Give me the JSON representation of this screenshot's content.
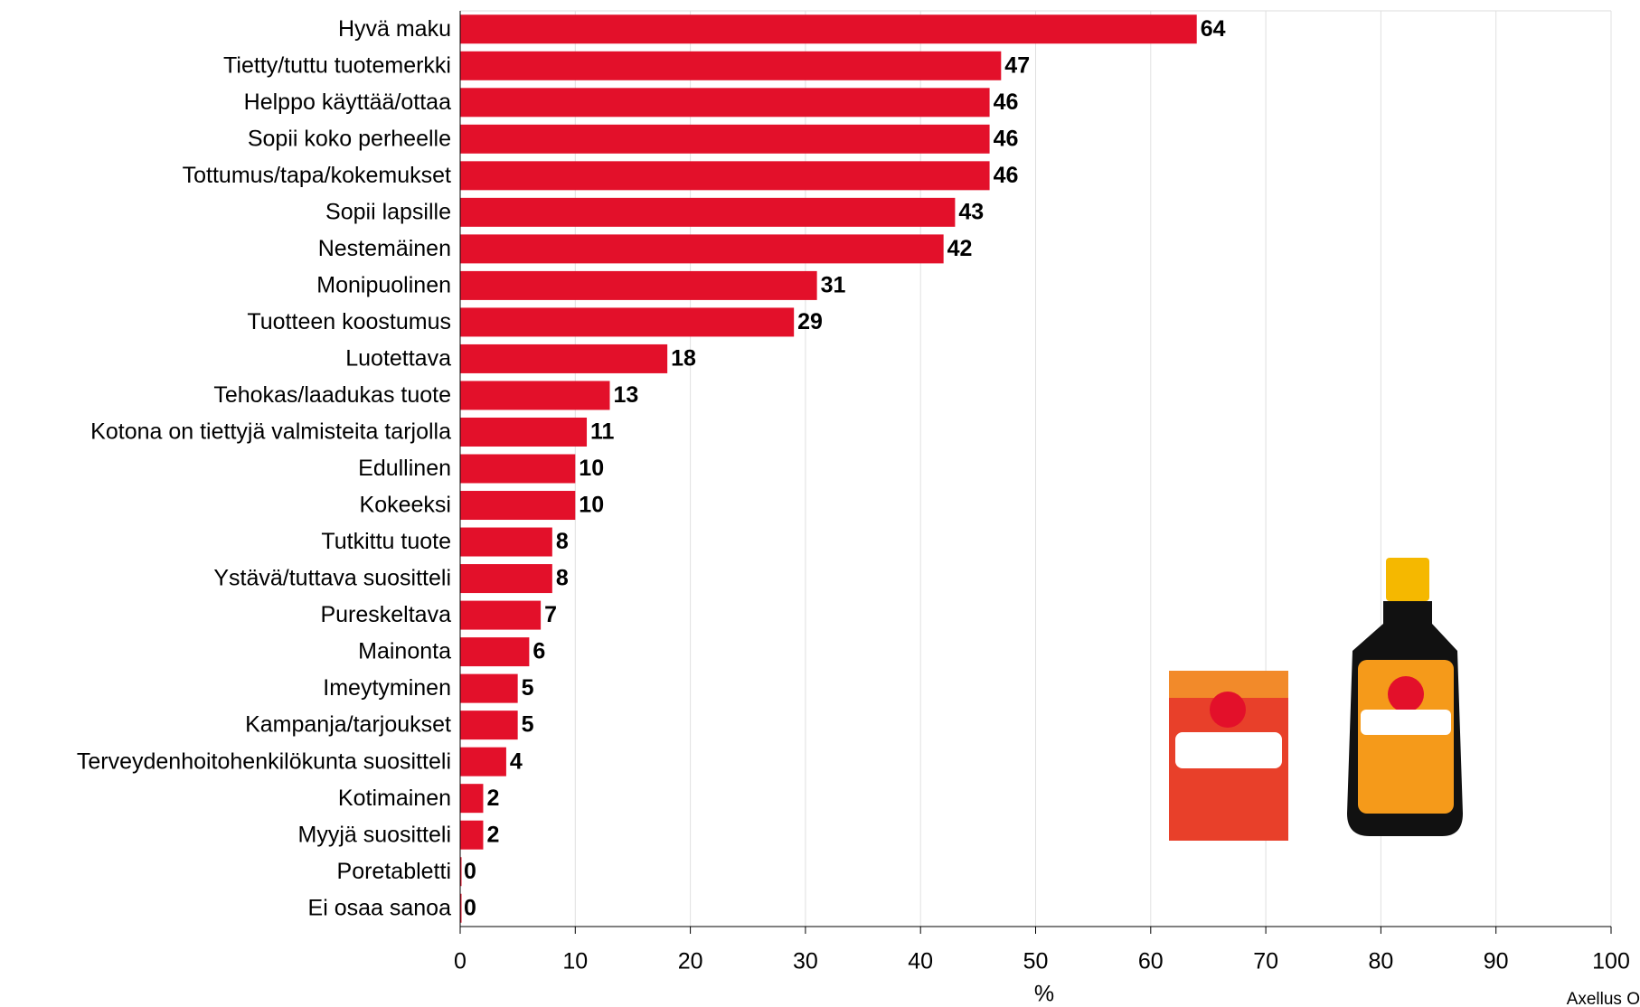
{
  "chart_data": {
    "type": "barh",
    "categories": [
      "Hyvä maku",
      "Tietty/tuttu tuotemerkki",
      "Helppo käyttää/ottaa",
      "Sopii koko perheelle",
      "Tottumus/tapa/kokemukset",
      "Sopii lapsille",
      "Nestemäinen",
      "Monipuolinen",
      "Tuotteen koostumus",
      "Luotettava",
      "Tehokas/laadukas tuote",
      "Kotona on tiettyjä valmisteita tarjolla",
      "Edullinen",
      "Kokeeksi",
      "Tutkittu tuote",
      "Ystävä/tuttava suositteli",
      "Pureskeltava",
      "Mainonta",
      "Imeytyminen",
      "Kampanja/tarjoukset",
      "Terveydenhoitohenkilökunta suositteli",
      "Kotimainen",
      "Myyjä suositteli",
      "Poretabletti",
      "Ei osaa sanoa"
    ],
    "values": [
      64,
      47,
      46,
      46,
      46,
      43,
      42,
      31,
      29,
      18,
      13,
      11,
      10,
      10,
      8,
      8,
      7,
      6,
      5,
      5,
      4,
      2,
      2,
      0,
      0
    ],
    "color": "#e3102a",
    "xlim": [
      0,
      100
    ],
    "xticks": [
      0,
      10,
      20,
      30,
      40,
      50,
      60,
      70,
      80,
      90,
      100
    ],
    "xlabel": "%",
    "source": "Axellus O",
    "grid": true
  }
}
